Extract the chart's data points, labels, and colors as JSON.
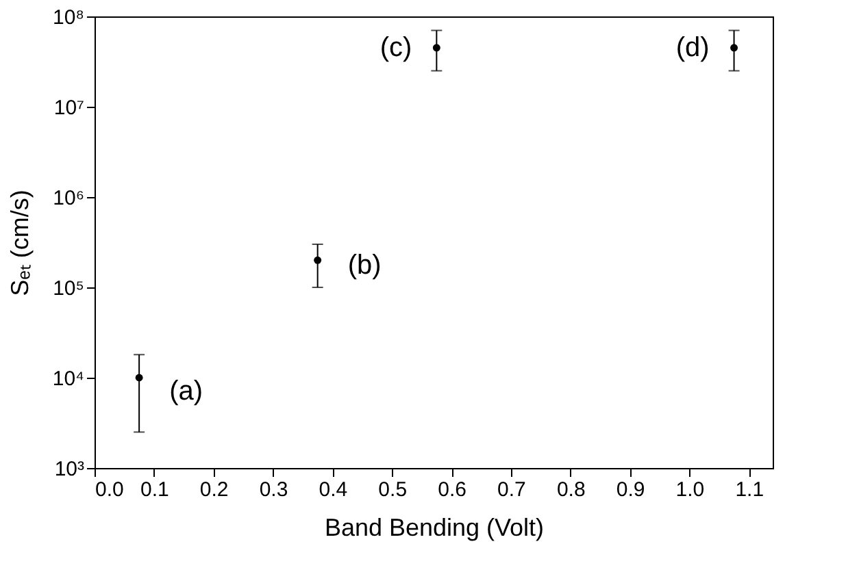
{
  "chart_data": {
    "type": "scatter",
    "xlabel": "Band Bending (Volt)",
    "ylabel": "Sₑₜ (cm/s)",
    "x": [
      0.075,
      0.375,
      0.575,
      1.075
    ],
    "values": [
      10000,
      200000,
      45000000,
      45000000
    ],
    "errors": [
      [
        2500,
        18000
      ],
      [
        100000,
        300000
      ],
      [
        25000000,
        70000000
      ],
      [
        25000000,
        70000000
      ]
    ],
    "color": "#000000",
    "marker": "circle",
    "xlim": [
      0,
      1.14
    ],
    "xticks": [
      {
        "value": 0,
        "label": "0.0"
      },
      0.1,
      0.2,
      0.3,
      0.4,
      0.5,
      0.6,
      0.7,
      0.8,
      0.9,
      {
        "value": 1,
        "label": "1.0"
      },
      1.1
    ],
    "ylim": [
      1000,
      100000000
    ],
    "log": true,
    "yticks": [
      {
        "value": 1000,
        "label": "10³"
      },
      {
        "value": 10000,
        "label": "10⁴"
      },
      {
        "value": 100000,
        "label": "10⁵"
      },
      {
        "value": 1000000,
        "label": "10⁶"
      },
      {
        "value": 10000000,
        "label": "10⁷"
      },
      {
        "value": 100000000,
        "label": "10⁸"
      }
    ],
    "grid": false,
    "annotations": [
      {
        "text": "(a)",
        "x": 0.075,
        "y": 10000
      },
      {
        "text": "(b)",
        "x": 0.375,
        "y": 200000
      },
      {
        "text": "(c)",
        "x": 0.575,
        "y": 45000000
      },
      {
        "text": "(d)",
        "x": 1.075,
        "y": 45000000
      }
    ]
  }
}
